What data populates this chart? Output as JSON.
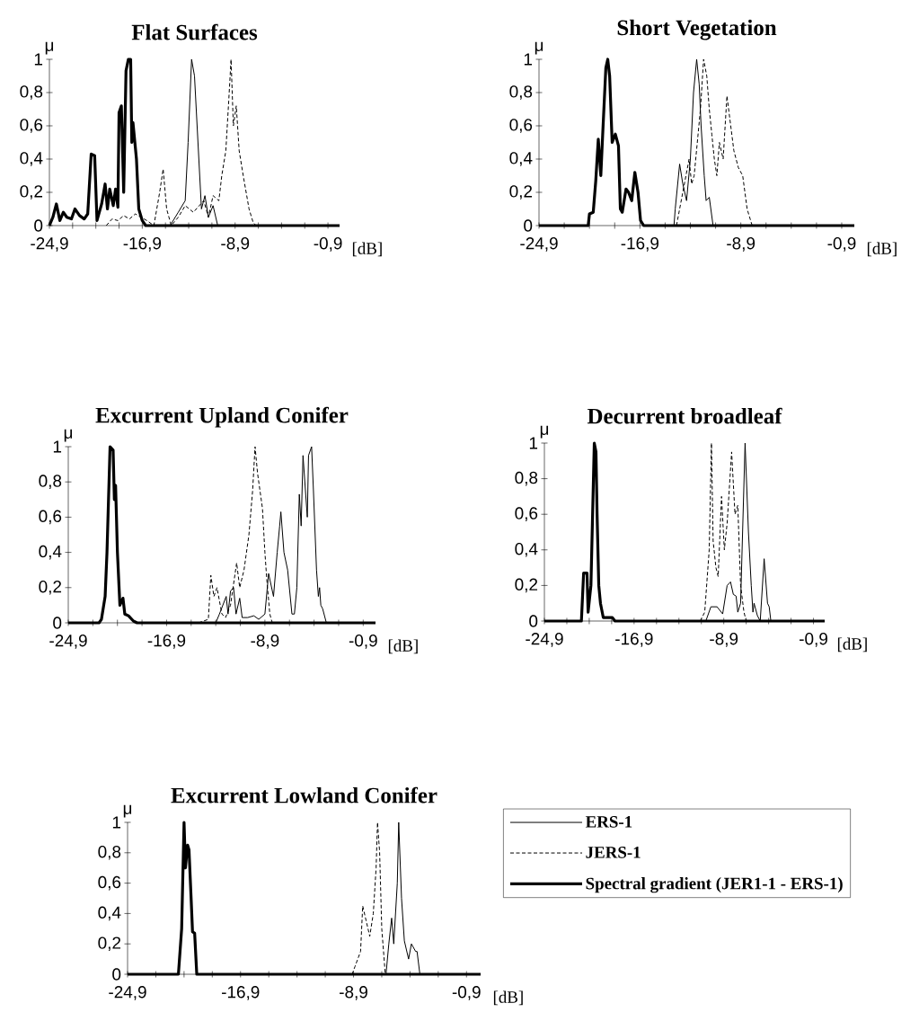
{
  "chart_data": [
    {
      "type": "line",
      "title": "Flat Surfaces",
      "xlabel": "[dB]",
      "ylabel": "μ",
      "xlim": [
        -24.9,
        0.1
      ],
      "ylim": [
        0,
        1
      ],
      "xticks": [
        {
          "value": -24.9,
          "label": "-24,9"
        },
        {
          "value": -22.9,
          "label": null
        },
        {
          "value": -20.9,
          "label": null
        },
        {
          "value": -18.9,
          "label": null
        },
        {
          "value": -16.9,
          "label": "-16,9"
        },
        {
          "value": -14.9,
          "label": null
        },
        {
          "value": -12.9,
          "label": null
        },
        {
          "value": -10.9,
          "label": null
        },
        {
          "value": -8.9,
          "label": "-8,9"
        },
        {
          "value": -6.9,
          "label": null
        },
        {
          "value": -4.9,
          "label": null
        },
        {
          "value": -2.9,
          "label": null
        },
        {
          "value": -0.9,
          "label": "-0,9"
        }
      ],
      "yticks": [
        0,
        {
          "value": 0.2,
          "label": "0,2"
        },
        {
          "value": 0.4,
          "label": "0,4"
        },
        {
          "value": 0.6,
          "label": "0,6"
        },
        {
          "value": 0.8,
          "label": "0,8"
        },
        1
      ],
      "series": [
        {
          "color": "#000000",
          "line_style": "solid",
          "x": [
            -14.5,
            -13.8,
            -13.2,
            -12.95,
            -12.65,
            -12.4,
            -12.1,
            -11.8,
            -11.5,
            -11.2,
            -10.8,
            -10.4
          ],
          "values": [
            0,
            0.08,
            0.15,
            0.5,
            1,
            0.9,
            0.5,
            0.1,
            0.18,
            0.05,
            0.12,
            0
          ]
        },
        {
          "color": "#000000",
          "line_style": "dashed",
          "x": [
            -20.0,
            -19.5,
            -19.0,
            -18.5,
            -18.0,
            -17.5,
            -17.0,
            -16.5,
            -15.9,
            -15.4,
            -15.1,
            -14.8,
            -14.4,
            -13.8,
            -13.2,
            -12.5,
            -11.6,
            -11.2,
            -10.8,
            -10.3,
            -10.05,
            -9.7,
            -9.45,
            -9.25,
            -9.05,
            -8.8,
            -8.55,
            -8.2,
            -7.95,
            -7.7,
            -7.35,
            -7.1
          ],
          "values": [
            0,
            0.04,
            0.03,
            0.06,
            0.04,
            0.07,
            0.05,
            0.03,
            0,
            0.2,
            0.34,
            0.1,
            0,
            0.05,
            0.12,
            0.08,
            0.15,
            0.05,
            0.18,
            0.15,
            0.3,
            0.45,
            0.75,
            1,
            0.6,
            0.72,
            0.45,
            0.3,
            0.2,
            0.1,
            0.02,
            0
          ]
        },
        {
          "color": "#000000",
          "line_style": "solid",
          "x": [
            -24.9,
            -24.6,
            -24.3,
            -24.0,
            -23.7,
            -23.4,
            -23.0,
            -22.7,
            -22.3,
            -21.9,
            -21.6,
            -21.3,
            -21.0,
            -20.8,
            -20.4,
            -20.1,
            -19.9,
            -19.7,
            -19.4,
            -19.2,
            -19.0,
            -18.9,
            -18.7,
            -18.5,
            -18.3,
            -18.1,
            -17.9,
            -17.8,
            -17.7,
            -17.4,
            -17.2,
            -16.9,
            -16.6,
            0.1
          ],
          "values": [
            0,
            0.05,
            0.13,
            0.03,
            0.08,
            0.05,
            0.04,
            0.1,
            0.06,
            0.04,
            0.07,
            0.43,
            0.42,
            0.03,
            0.13,
            0.25,
            0.1,
            0.22,
            0.12,
            0.22,
            0.11,
            0.68,
            0.72,
            0.2,
            0.93,
            1,
            1,
            0.5,
            0.62,
            0.4,
            0.1,
            0.03,
            0,
            0
          ]
        }
      ]
    },
    {
      "type": "line",
      "title": "Short Vegetation",
      "xlabel": "[dB]",
      "ylabel": "μ",
      "xlim": [
        -24.9,
        0.1
      ],
      "ylim": [
        0,
        1
      ],
      "xticks": [
        {
          "value": -24.9,
          "label": "-24,9"
        },
        {
          "value": -22.9,
          "label": null
        },
        {
          "value": -20.9,
          "label": null
        },
        {
          "value": -18.9,
          "label": null
        },
        {
          "value": -16.9,
          "label": "-16,9"
        },
        {
          "value": -14.9,
          "label": null
        },
        {
          "value": -12.9,
          "label": null
        },
        {
          "value": -10.9,
          "label": null
        },
        {
          "value": -8.9,
          "label": "-8,9"
        },
        {
          "value": -6.9,
          "label": null
        },
        {
          "value": -4.9,
          "label": null
        },
        {
          "value": -2.9,
          "label": null
        },
        {
          "value": -0.9,
          "label": "-0,9"
        }
      ],
      "yticks": [
        0,
        {
          "value": 0.2,
          "label": "0,2"
        },
        {
          "value": 0.4,
          "label": "0,4"
        },
        {
          "value": 0.6,
          "label": "0,6"
        },
        {
          "value": 0.8,
          "label": "0,8"
        },
        1
      ],
      "series": [
        {
          "color": "#000000",
          "line_style": "solid",
          "x": [
            -14.2,
            -14.1,
            -13.75,
            -13.5,
            -13.2,
            -12.9,
            -12.65,
            -12.4,
            -12.2,
            -12.05,
            -11.8,
            -11.65,
            -11.4,
            -11.1
          ],
          "values": [
            0,
            0.1,
            0.37,
            0.25,
            0.15,
            0.4,
            0.8,
            1,
            0.85,
            0.6,
            0.3,
            0.15,
            0.17,
            0
          ]
        },
        {
          "color": "#000000",
          "line_style": "dashed",
          "x": [
            -14.0,
            -13.5,
            -13.0,
            -12.8,
            -12.6,
            -12.35,
            -12.1,
            -11.85,
            -11.6,
            -11.4,
            -11.2,
            -11.0,
            -10.8,
            -10.6,
            -10.3,
            -10.0,
            -9.7,
            -9.45,
            -9.1,
            -8.75,
            -8.4,
            -8.0
          ],
          "values": [
            0,
            0.2,
            0.4,
            0.25,
            0.3,
            0.5,
            0.7,
            1,
            0.9,
            0.7,
            0.55,
            0.4,
            0.3,
            0.5,
            0.4,
            0.78,
            0.6,
            0.45,
            0.35,
            0.3,
            0.1,
            0
          ]
        },
        {
          "color": "#000000",
          "line_style": "solid",
          "x": [
            -24.9,
            -21.0,
            -20.9,
            -20.6,
            -20.4,
            -20.2,
            -20.0,
            -19.85,
            -19.6,
            -19.45,
            -19.3,
            -19.1,
            -18.85,
            -18.6,
            -18.45,
            -18.3,
            -18.0,
            -17.8,
            -17.55,
            -17.3,
            -17.05,
            -16.85,
            -16.6,
            0.1
          ],
          "values": [
            0,
            0,
            0.07,
            0.08,
            0.27,
            0.52,
            0.3,
            0.55,
            0.95,
            1,
            0.9,
            0.5,
            0.55,
            0.48,
            0.1,
            0.08,
            0.22,
            0.2,
            0.15,
            0.32,
            0.2,
            0.03,
            0,
            0
          ]
        }
      ]
    },
    {
      "type": "line",
      "title": "Excurrent Upland Conifer",
      "xlabel": "[dB]",
      "ylabel": "μ",
      "xlim": [
        -24.9,
        0.1
      ],
      "ylim": [
        0,
        1
      ],
      "xticks": [
        {
          "value": -24.9,
          "label": "-24,9"
        },
        {
          "value": -22.9,
          "label": null
        },
        {
          "value": -20.9,
          "label": null
        },
        {
          "value": -18.9,
          "label": null
        },
        {
          "value": -16.9,
          "label": "-16,9"
        },
        {
          "value": -14.9,
          "label": null
        },
        {
          "value": -12.9,
          "label": null
        },
        {
          "value": -10.9,
          "label": null
        },
        {
          "value": -8.9,
          "label": "-8,9"
        },
        {
          "value": -6.9,
          "label": null
        },
        {
          "value": -4.9,
          "label": null
        },
        {
          "value": -2.9,
          "label": null
        },
        {
          "value": -0.9,
          "label": "-0,9"
        }
      ],
      "yticks": [
        0,
        {
          "value": 0.2,
          "label": "0,2"
        },
        {
          "value": 0.4,
          "label": "0,4"
        },
        {
          "value": 0.6,
          "label": "0,6"
        },
        {
          "value": 0.8,
          "label": "0,8"
        },
        1
      ],
      "series": [
        {
          "color": "#000000",
          "line_style": "solid",
          "x": [
            -12.9,
            -12.6,
            -12.05,
            -11.9,
            -11.7,
            -11.45,
            -11.25,
            -10.95,
            -10.75,
            -10.3,
            -9.8,
            -9.4,
            -8.9,
            -8.6,
            -8.2,
            -7.9,
            -7.7,
            -7.6,
            -7.35,
            -7.05,
            -6.7,
            -6.5,
            -6.3,
            -6.1,
            -5.95,
            -5.8,
            -5.6,
            -5.45,
            -5.35,
            -5.1,
            -4.95,
            -4.7,
            -4.55,
            -4.45,
            -4.35,
            -4.2,
            -3.9
          ],
          "values": [
            0,
            0.05,
            0.15,
            0.05,
            0.18,
            0.2,
            0.05,
            0.14,
            0.03,
            0.03,
            0.04,
            0.02,
            0.05,
            0.28,
            0.15,
            0.4,
            0.55,
            0.63,
            0.4,
            0.3,
            0.05,
            0.05,
            0.2,
            0.73,
            0.55,
            0.95,
            0.75,
            0.6,
            0.95,
            1,
            0.75,
            0.3,
            0.15,
            0.2,
            0.1,
            0.08,
            0
          ]
        },
        {
          "color": "#000000",
          "line_style": "dashed",
          "x": [
            -14.3,
            -13.5,
            -13.3,
            -13.05,
            -12.8,
            -12.4,
            -12.1,
            -11.7,
            -11.2,
            -10.95,
            -10.6,
            -10.2,
            -9.9,
            -9.7,
            -9.5,
            -9.1,
            -8.9,
            -8.75,
            -8.5,
            -8.3
          ],
          "values": [
            0,
            0.02,
            0.27,
            0.15,
            0.2,
            0.05,
            0.03,
            0.1,
            0.34,
            0.2,
            0.3,
            0.5,
            0.75,
            1,
            0.85,
            0.65,
            0.4,
            0.25,
            0.05,
            0
          ]
        },
        {
          "color": "#000000",
          "line_style": "solid",
          "x": [
            -24.9,
            -22.4,
            -22.2,
            -21.9,
            -21.75,
            -21.5,
            -21.25,
            -21.15,
            -21.05,
            -20.9,
            -20.7,
            -20.45,
            -20.3,
            -20.0,
            -19.6,
            -19.3,
            0.1
          ],
          "values": [
            0,
            0,
            0.02,
            0.15,
            0.4,
            1,
            0.98,
            0.7,
            0.78,
            0.4,
            0.1,
            0.14,
            0.05,
            0.04,
            0.01,
            0,
            0
          ]
        }
      ]
    },
    {
      "type": "line",
      "title": "Decurrent broadleaf",
      "xlabel": "[dB]",
      "ylabel": "μ",
      "xlim": [
        -24.9,
        0.1
      ],
      "ylim": [
        0,
        1
      ],
      "xticks": [
        {
          "value": -24.9,
          "label": "-24,9"
        },
        {
          "value": -22.9,
          "label": null
        },
        {
          "value": -20.9,
          "label": null
        },
        {
          "value": -18.9,
          "label": null
        },
        {
          "value": -16.9,
          "label": "-16,9"
        },
        {
          "value": -14.9,
          "label": null
        },
        {
          "value": -12.9,
          "label": null
        },
        {
          "value": -10.9,
          "label": null
        },
        {
          "value": -8.9,
          "label": "-8,9"
        },
        {
          "value": -6.9,
          "label": null
        },
        {
          "value": -4.9,
          "label": null
        },
        {
          "value": -2.9,
          "label": null
        },
        {
          "value": -0.9,
          "label": "-0,9"
        }
      ],
      "yticks": [
        0,
        {
          "value": 0.2,
          "label": "0,2"
        },
        {
          "value": 0.4,
          "label": "0,4"
        },
        {
          "value": 0.6,
          "label": "0,6"
        },
        {
          "value": 0.8,
          "label": "0,8"
        },
        1
      ],
      "series": [
        {
          "color": "#000000",
          "line_style": "solid",
          "x": [
            -10.5,
            -10.05,
            -9.5,
            -9.0,
            -8.6,
            -8.3,
            -8.05,
            -7.8,
            -7.65,
            -7.4,
            -7.0,
            -6.7,
            -6.45,
            -6.3,
            -6.2,
            -5.9,
            -5.65,
            -5.3,
            -5.0,
            -4.85,
            -4.7
          ],
          "values": [
            0,
            0.08,
            0.08,
            0.04,
            0.2,
            0.22,
            0.15,
            0.14,
            0.05,
            0.1,
            1,
            0.5,
            0.2,
            0.05,
            0.1,
            0.03,
            0,
            0.35,
            0.1,
            0.08,
            0
          ]
        },
        {
          "color": "#000000",
          "line_style": "dashed",
          "x": [
            -11.0,
            -10.6,
            -10.2,
            -10.0,
            -9.85,
            -9.6,
            -9.4,
            -9.1,
            -8.85,
            -8.6,
            -8.2,
            -7.9,
            -7.65,
            -7.4,
            -7.1,
            -6.9
          ],
          "values": [
            0,
            0.05,
            0.4,
            1,
            0.45,
            0.3,
            0.25,
            0.7,
            0.4,
            0.55,
            0.95,
            0.6,
            0.65,
            0.2,
            0.05,
            0
          ]
        },
        {
          "color": "#000000",
          "line_style": "solid",
          "x": [
            -24.9,
            -21.6,
            -21.4,
            -21.1,
            -21.0,
            -20.75,
            -20.6,
            -20.45,
            -20.3,
            -20.2,
            -20.05,
            -19.9,
            -19.65,
            -18.85,
            -18.6,
            0.1
          ],
          "values": [
            0,
            0,
            0.27,
            0.27,
            0.05,
            0.2,
            0.6,
            1,
            0.95,
            0.6,
            0.2,
            0.1,
            0.02,
            0.02,
            0,
            0
          ]
        }
      ]
    },
    {
      "type": "line",
      "title": "Excurrent Lowland Conifer",
      "xlabel": "[dB]",
      "ylabel": "μ",
      "xlim": [
        -24.9,
        0.1
      ],
      "ylim": [
        0,
        1
      ],
      "legend": "right",
      "xticks": [
        {
          "value": -24.9,
          "label": "-24,9"
        },
        {
          "value": -22.9,
          "label": null
        },
        {
          "value": -20.9,
          "label": null
        },
        {
          "value": -18.9,
          "label": null
        },
        {
          "value": -16.9,
          "label": "-16,9"
        },
        {
          "value": -14.9,
          "label": null
        },
        {
          "value": -12.9,
          "label": null
        },
        {
          "value": -10.9,
          "label": null
        },
        {
          "value": -8.9,
          "label": "-8,9"
        },
        {
          "value": -6.9,
          "label": null
        },
        {
          "value": -4.9,
          "label": null
        },
        {
          "value": -2.9,
          "label": null
        },
        {
          "value": -0.9,
          "label": "-0,9"
        }
      ],
      "yticks": [
        0,
        {
          "value": 0.2,
          "label": "0,2"
        },
        {
          "value": 0.4,
          "label": "0,4"
        },
        {
          "value": 0.6,
          "label": "0,6"
        },
        {
          "value": 0.8,
          "label": "0,8"
        },
        1
      ],
      "series": [
        {
          "name": "ERS-1",
          "color": "#000000",
          "line_style": "solid",
          "x": [
            -6.6,
            -6.4,
            -6.2,
            -6.05,
            -5.8,
            -5.7,
            -5.5,
            -5.3,
            -5.0,
            -4.8,
            -4.5,
            -4.4,
            -4.2
          ],
          "values": [
            0,
            0.2,
            0.37,
            0.2,
            0.6,
            1,
            0.5,
            0.22,
            0.1,
            0.2,
            0.15,
            0.15,
            0
          ]
        },
        {
          "name": "JERS-1",
          "color": "#000000",
          "line_style": "dashed",
          "x": [
            -9.0,
            -8.8,
            -8.4,
            -8.25,
            -8.0,
            -7.75,
            -7.5,
            -7.3,
            -7.2,
            -7.05,
            -6.9,
            -6.65
          ],
          "values": [
            0,
            0.05,
            0.15,
            0.45,
            0.35,
            0.25,
            0.4,
            0.7,
            1,
            0.8,
            0.3,
            0
          ]
        },
        {
          "name": "Spectral gradient (JER1-1  -  ERS-1)",
          "color": "#000000",
          "line_style": "solid",
          "x": [
            -24.9,
            -21.3,
            -21.07,
            -20.9,
            -20.8,
            -20.65,
            -20.55,
            -20.4,
            -20.3,
            -20.15,
            -20.0,
            0.1
          ],
          "values": [
            0,
            0,
            0.3,
            1,
            0.7,
            0.85,
            0.82,
            0.5,
            0.28,
            0.27,
            0,
            0
          ]
        }
      ]
    }
  ]
}
